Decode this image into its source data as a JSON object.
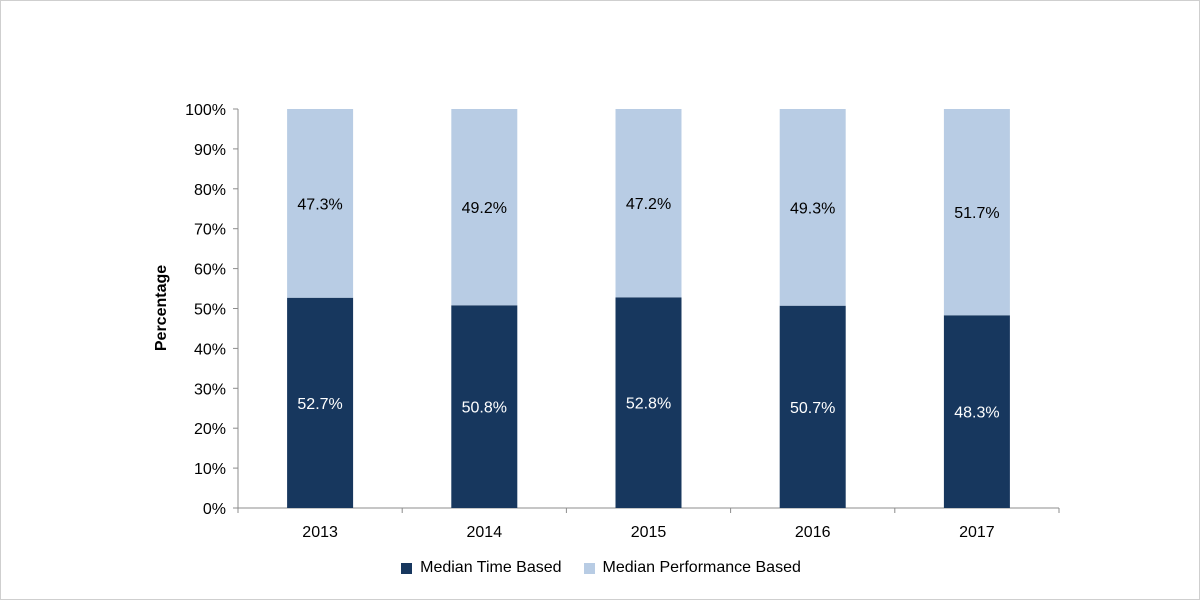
{
  "chart_data": {
    "type": "bar",
    "stacked": true,
    "categories": [
      "2013",
      "2014",
      "2015",
      "2016",
      "2017"
    ],
    "series": [
      {
        "name": "Median Time Based",
        "color": "#17375e",
        "values": [
          52.7,
          50.8,
          52.8,
          50.7,
          48.3
        ]
      },
      {
        "name": "Median Performance Based",
        "color": "#b8cce4",
        "values": [
          47.3,
          49.2,
          47.2,
          49.3,
          51.7
        ]
      }
    ],
    "data_labels": [
      [
        "52.7%",
        "50.8%",
        "52.8%",
        "50.7%",
        "48.3%"
      ],
      [
        "47.3%",
        "49.2%",
        "47.2%",
        "49.3%",
        "51.7%"
      ]
    ],
    "ylabel": "Percentage",
    "xlabel": "",
    "ylim": [
      0,
      100
    ],
    "yticks": [
      "0%",
      "10%",
      "20%",
      "30%",
      "40%",
      "50%",
      "60%",
      "70%",
      "80%",
      "90%",
      "100%"
    ],
    "grid": false,
    "legend": "bottom"
  }
}
